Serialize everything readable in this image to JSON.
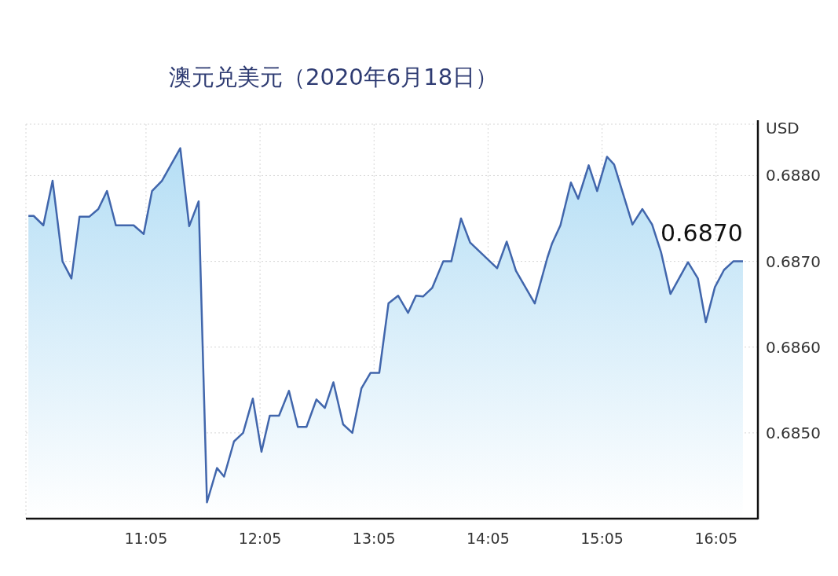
{
  "chart_data": {
    "type": "area",
    "title": "澳元兑美元（2020年6月18日）",
    "ylabel": "USD",
    "x": [
      10.052,
      10.098,
      10.183,
      10.264,
      10.351,
      10.429,
      10.5,
      10.585,
      10.665,
      10.741,
      10.819,
      10.975,
      11.063,
      11.136,
      11.223,
      11.384,
      11.462,
      11.545,
      11.618,
      11.706,
      11.768,
      11.855,
      11.935,
      12.02,
      12.096,
      12.169,
      12.25,
      12.337,
      12.415,
      12.491,
      12.578,
      12.652,
      12.727,
      12.812,
      12.893,
      12.973,
      13.053,
      13.129,
      13.21,
      13.295,
      13.382,
      13.451,
      13.513,
      13.593,
      13.69,
      13.761,
      13.846,
      13.926,
      14.163,
      14.247,
      14.328,
      14.493,
      14.603,
      14.645,
      14.718,
      14.81,
      14.874,
      14.966,
      15.04,
      15.127,
      15.189,
      15.35,
      15.437,
      15.522,
      15.602,
      15.683,
      15.837,
      15.924,
      15.993,
      16.073,
      16.153,
      16.234,
      16.319
    ],
    "series": [
      {
        "color": "#4166ac",
        "values": [
          0.68753,
          0.68753,
          0.68742,
          0.68794,
          0.687,
          0.6868,
          0.68752,
          0.68752,
          0.68761,
          0.68782,
          0.68742,
          0.68742,
          0.68732,
          0.68782,
          0.68794,
          0.68832,
          0.68741,
          0.6877,
          0.68419,
          0.68459,
          0.68449,
          0.6849,
          0.685,
          0.6854,
          0.68478,
          0.6852,
          0.6852,
          0.68549,
          0.68507,
          0.68507,
          0.68539,
          0.68529,
          0.68559,
          0.6851,
          0.685,
          0.68552,
          0.6857,
          0.6857,
          0.68651,
          0.6866,
          0.6864,
          0.6866,
          0.68659,
          0.68669,
          0.687,
          0.687,
          0.6875,
          0.68722,
          0.68692,
          0.68723,
          0.68689,
          0.68651,
          0.68704,
          0.68721,
          0.68742,
          0.68792,
          0.68773,
          0.68812,
          0.68782,
          0.68822,
          0.68813,
          0.68743,
          0.68761,
          0.68743,
          0.6871,
          0.68662,
          0.68699,
          0.6868,
          0.68629,
          0.6867,
          0.6869,
          0.687,
          0.687
        ]
      }
    ],
    "xlim": [
      10.03,
      16.45
    ],
    "ylim": [
      0.684,
      0.6886
    ],
    "xticks": [
      {
        "value": 11.0833,
        "label": "11:05"
      },
      {
        "value": 12.0833,
        "label": "12:05"
      },
      {
        "value": 13.0833,
        "label": "13:05"
      },
      {
        "value": 14.0833,
        "label": "14:05"
      },
      {
        "value": 15.0833,
        "label": "15:05"
      },
      {
        "value": 16.0833,
        "label": "16:05"
      }
    ],
    "yticks": [
      {
        "value": 0.685,
        "label": "0.6850"
      },
      {
        "value": 0.686,
        "label": "0.6860"
      },
      {
        "value": 0.687,
        "label": "0.6870"
      },
      {
        "value": 0.688,
        "label": "0.6880"
      }
    ],
    "grid": true,
    "annotations": [
      {
        "text": "0.6870",
        "x": 16.319,
        "y": 0.687
      }
    ]
  }
}
